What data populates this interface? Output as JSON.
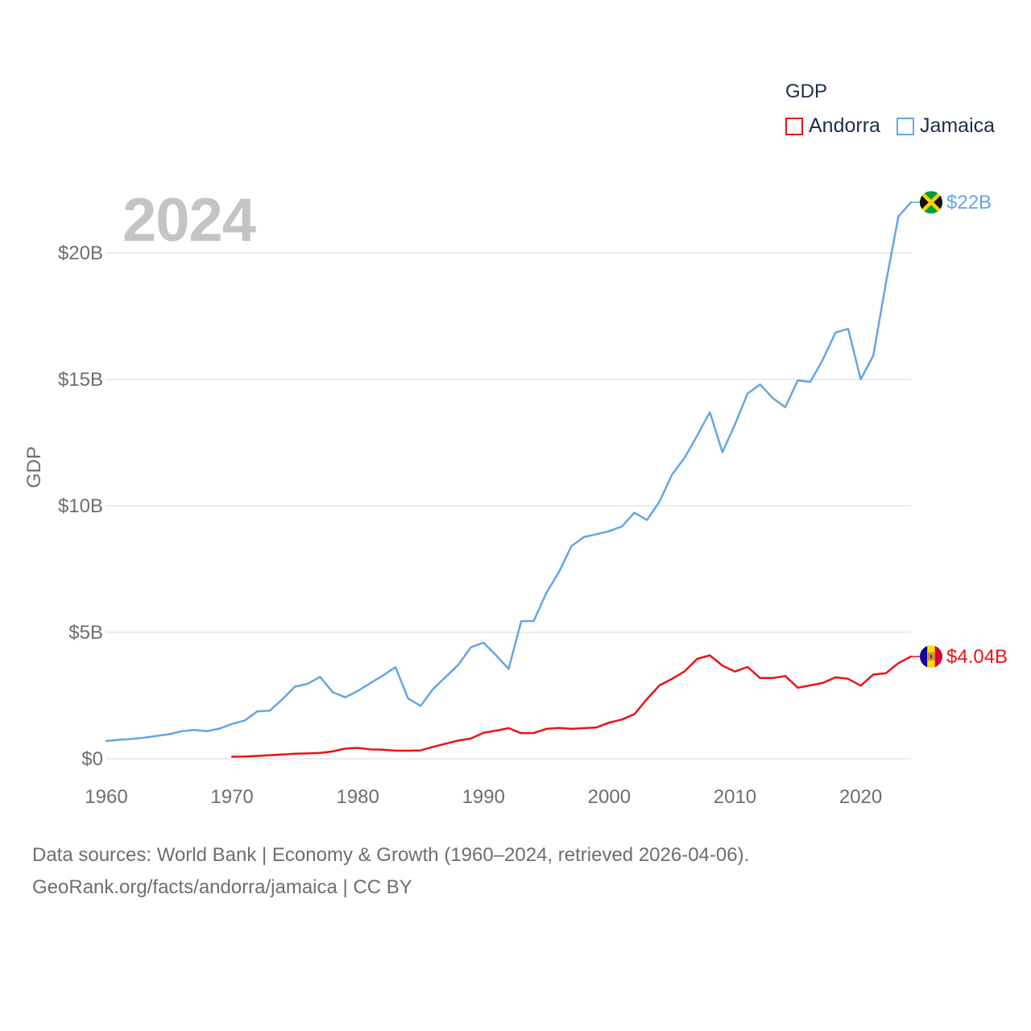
{
  "legend": {
    "title": "GDP",
    "items": [
      {
        "name": "Andorra",
        "color": "#ee1111"
      },
      {
        "name": "Jamaica",
        "color": "#64a6e6"
      }
    ]
  },
  "overlay_year": "2024",
  "source": {
    "line1": "Data sources: World Bank | Economy & Growth (1960–2024, retrieved 2026-04-06).",
    "line2": "GeoRank.org/facts/andorra/jamaica | CC BY"
  },
  "chart_data": {
    "type": "line",
    "title": "",
    "xlabel": "",
    "ylabel": "GDP",
    "xlim": [
      1960,
      2024
    ],
    "ylim": [
      0,
      20
    ],
    "y_unit": "billion USD",
    "grid": true,
    "legend_position": "top-right",
    "x_ticks": [
      {
        "value": 1960,
        "label": "1960"
      },
      {
        "value": 1970,
        "label": "1970"
      },
      {
        "value": 1980,
        "label": "1980"
      },
      {
        "value": 1990,
        "label": "1990"
      },
      {
        "value": 2000,
        "label": "2000"
      },
      {
        "value": 2010,
        "label": "2010"
      },
      {
        "value": 2020,
        "label": "2020"
      }
    ],
    "y_ticks": [
      {
        "value": 0,
        "label": "$0"
      },
      {
        "value": 5,
        "label": "$5B"
      },
      {
        "value": 10,
        "label": "$10B"
      },
      {
        "value": 15,
        "label": "$15B"
      },
      {
        "value": 20,
        "label": "$20B"
      }
    ],
    "series": [
      {
        "name": "Jamaica",
        "color": "#64a6e6",
        "end_label": "$22B",
        "flag": "jamaica",
        "start_year": 1960,
        "values": [
          0.7,
          0.75,
          0.78,
          0.83,
          0.9,
          0.97,
          1.09,
          1.14,
          1.09,
          1.19,
          1.38,
          1.51,
          1.87,
          1.9,
          2.35,
          2.85,
          2.96,
          3.24,
          2.63,
          2.43,
          2.68,
          2.99,
          3.29,
          3.62,
          2.39,
          2.09,
          2.76,
          3.24,
          3.72,
          4.41,
          4.59,
          4.09,
          3.55,
          5.44,
          5.45,
          6.56,
          7.38,
          8.41,
          8.77,
          8.88,
          9.0,
          9.18,
          9.73,
          9.44,
          10.17,
          11.24,
          11.9,
          12.78,
          13.7,
          12.12,
          13.22,
          14.44,
          14.8,
          14.26,
          13.9,
          14.96,
          14.9,
          15.79,
          16.85,
          17.0,
          15.0,
          15.94,
          18.8,
          21.44,
          22.0
        ]
      },
      {
        "name": "Andorra",
        "color": "#ee1111",
        "end_label": "$4.04B",
        "flag": "andorra",
        "start_year": 1970,
        "values": [
          0.08,
          0.09,
          0.11,
          0.14,
          0.17,
          0.2,
          0.21,
          0.23,
          0.29,
          0.4,
          0.43,
          0.37,
          0.36,
          0.32,
          0.32,
          0.33,
          0.47,
          0.6,
          0.72,
          0.8,
          1.03,
          1.11,
          1.21,
          1.01,
          1.02,
          1.18,
          1.22,
          1.18,
          1.21,
          1.24,
          1.43,
          1.55,
          1.76,
          2.36,
          2.9,
          3.16,
          3.46,
          3.95,
          4.09,
          3.68,
          3.45,
          3.63,
          3.19,
          3.19,
          3.27,
          2.81,
          2.9,
          3.0,
          3.22,
          3.16,
          2.89,
          3.33,
          3.38,
          3.78,
          4.04
        ]
      }
    ]
  }
}
